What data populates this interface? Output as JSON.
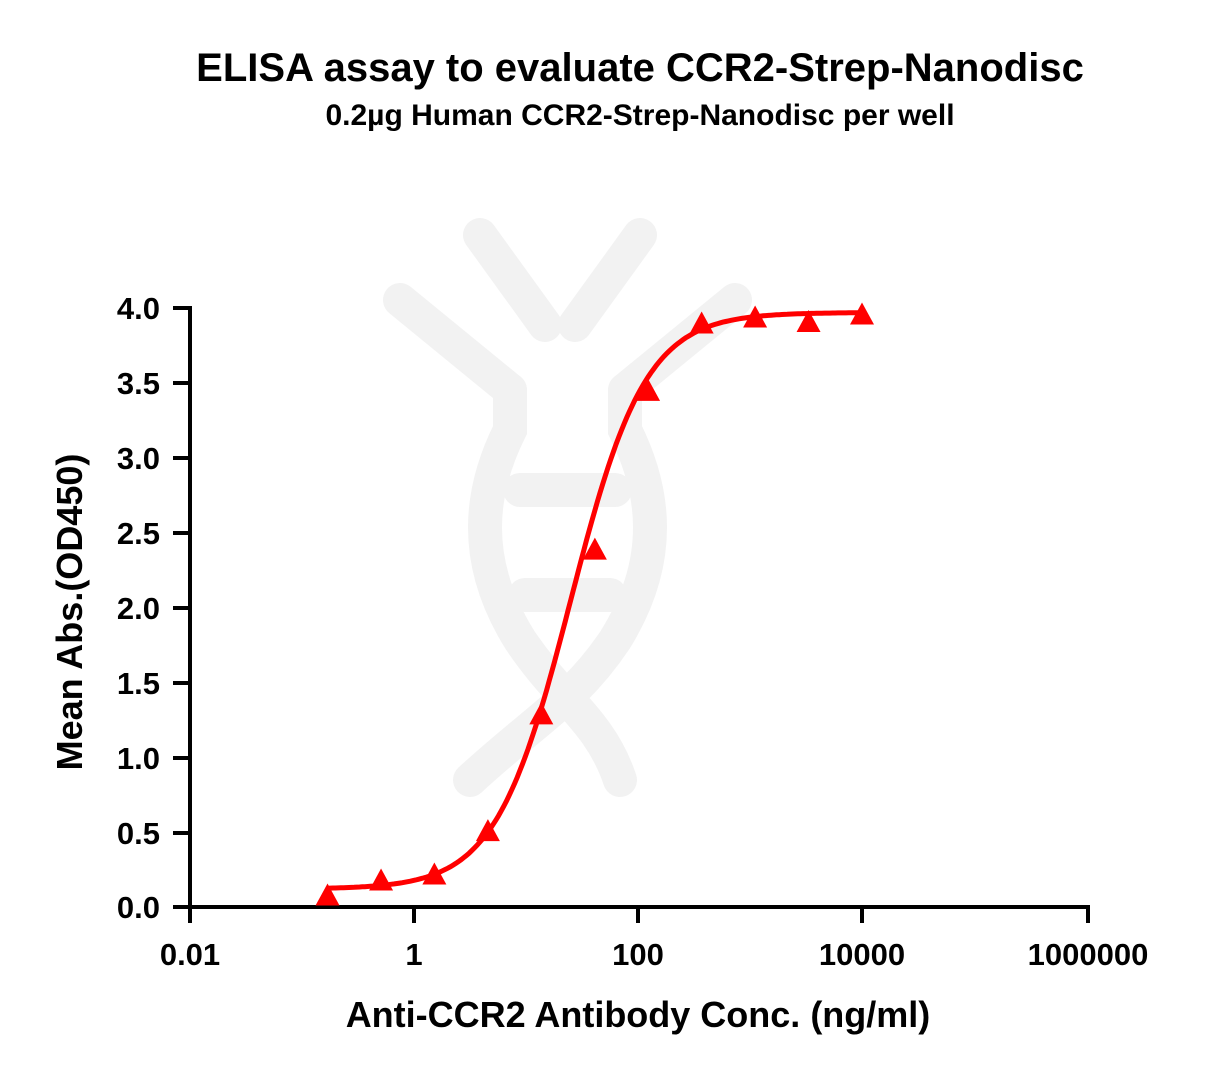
{
  "chart_data": {
    "type": "line",
    "title": "ELISA assay to evaluate CCR2-Strep-Nanodisc",
    "subtitle": "0.2µg Human CCR2-Strep-Nanodisc per well",
    "xlabel": "Anti-CCR2 Antibody Conc. (ng/ml)",
    "ylabel": "Mean Abs.(OD450)",
    "xscale": "log",
    "xlim": [
      0.01,
      1000000
    ],
    "ylim": [
      0.0,
      4.0
    ],
    "xticks": [
      "0.01",
      "1",
      "100",
      "10000",
      "1000000"
    ],
    "yticks": [
      "0.0",
      "0.5",
      "1.0",
      "1.5",
      "2.0",
      "2.5",
      "3.0",
      "3.5",
      "4.0"
    ],
    "grid": false,
    "legend": null,
    "series": [
      {
        "name": "CCR2-Strep-Nanodisc",
        "marker": "triangle",
        "color": "#ff0000",
        "fit": "4PL sigmoidal curve",
        "x": [
          0.169,
          0.508,
          1.52,
          4.57,
          13.7,
          41.2,
          123,
          370,
          1111,
          3333,
          10000
        ],
        "y": [
          0.07,
          0.17,
          0.21,
          0.5,
          1.28,
          2.38,
          3.44,
          3.89,
          3.93,
          3.9,
          3.95
        ]
      }
    ],
    "fit_params": {
      "bottom": 0.12,
      "top": 3.97,
      "ec50": 25,
      "hill": 1.3
    }
  }
}
